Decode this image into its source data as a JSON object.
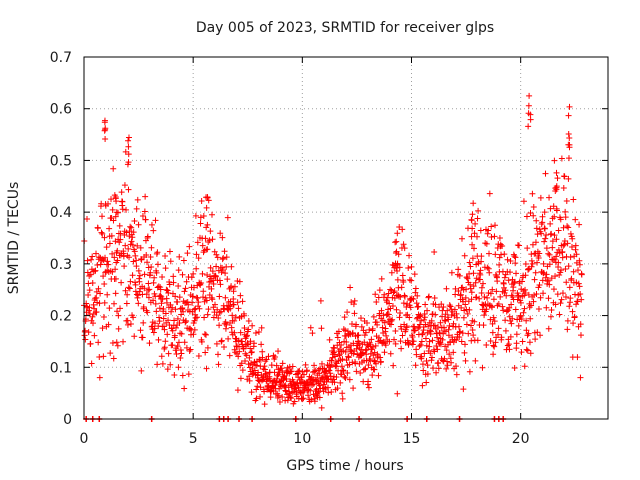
{
  "chart_data": {
    "type": "scatter",
    "title": "Day 005 of 2023, SRMTID for receiver glps",
    "xlabel": "GPS time / hours",
    "ylabel": "SRMTID / TECUs",
    "xlim": [
      0,
      24
    ],
    "ylim": [
      0,
      0.7
    ],
    "x_ticks": [
      0,
      5,
      10,
      15,
      20
    ],
    "x_tick_labels": [
      "0",
      "5",
      "10",
      "15",
      "20"
    ],
    "y_ticks": [
      0,
      0.1,
      0.2,
      0.3,
      0.4,
      0.5,
      0.6,
      0.7
    ],
    "y_tick_labels": [
      "0",
      "0.1",
      "0.2",
      "0.3",
      "0.4",
      "0.5",
      "0.6",
      "0.7"
    ],
    "grid": true,
    "marker": "+",
    "series_color": "#ff0000",
    "grid_color": "#a0a0a0",
    "trend": {
      "x": [
        0,
        0.5,
        1,
        1.5,
        2,
        2.5,
        3,
        3.5,
        4,
        4.5,
        5,
        5.5,
        6,
        6.5,
        7,
        7.5,
        8,
        8.5,
        9,
        9.5,
        10,
        10.5,
        11,
        11.5,
        12,
        12.5,
        13,
        13.5,
        14,
        14.5,
        15,
        15.5,
        16,
        16.5,
        17,
        17.5,
        18,
        18.5,
        19,
        19.5,
        20,
        20.5,
        21,
        21.5,
        22,
        22.5,
        22.8
      ],
      "y": [
        0.22,
        0.26,
        0.3,
        0.33,
        0.31,
        0.28,
        0.26,
        0.2,
        0.19,
        0.18,
        0.24,
        0.27,
        0.25,
        0.22,
        0.17,
        0.13,
        0.09,
        0.08,
        0.07,
        0.07,
        0.06,
        0.07,
        0.08,
        0.1,
        0.13,
        0.14,
        0.12,
        0.16,
        0.2,
        0.22,
        0.2,
        0.16,
        0.15,
        0.16,
        0.18,
        0.21,
        0.26,
        0.27,
        0.24,
        0.21,
        0.23,
        0.28,
        0.3,
        0.31,
        0.33,
        0.28,
        0.23
      ]
    },
    "spikes": [
      {
        "x": 0.95,
        "y": 0.58
      },
      {
        "x": 2.05,
        "y": 0.55
      },
      {
        "x": 1.5,
        "y": 0.45
      },
      {
        "x": 5.6,
        "y": 0.43
      },
      {
        "x": 14.3,
        "y": 0.36
      },
      {
        "x": 17.8,
        "y": 0.42
      },
      {
        "x": 20.4,
        "y": 0.63
      },
      {
        "x": 22.2,
        "y": 0.59
      },
      {
        "x": 21.6,
        "y": 0.5
      }
    ],
    "zero_markers_x": [
      0.1,
      0.4,
      0.7,
      3.1,
      6.2,
      6.4,
      6.6,
      7.1,
      7.7,
      9.7,
      11.3,
      12.6,
      14.8,
      15.7,
      17.2,
      18.8,
      19.0,
      19.2
    ]
  }
}
